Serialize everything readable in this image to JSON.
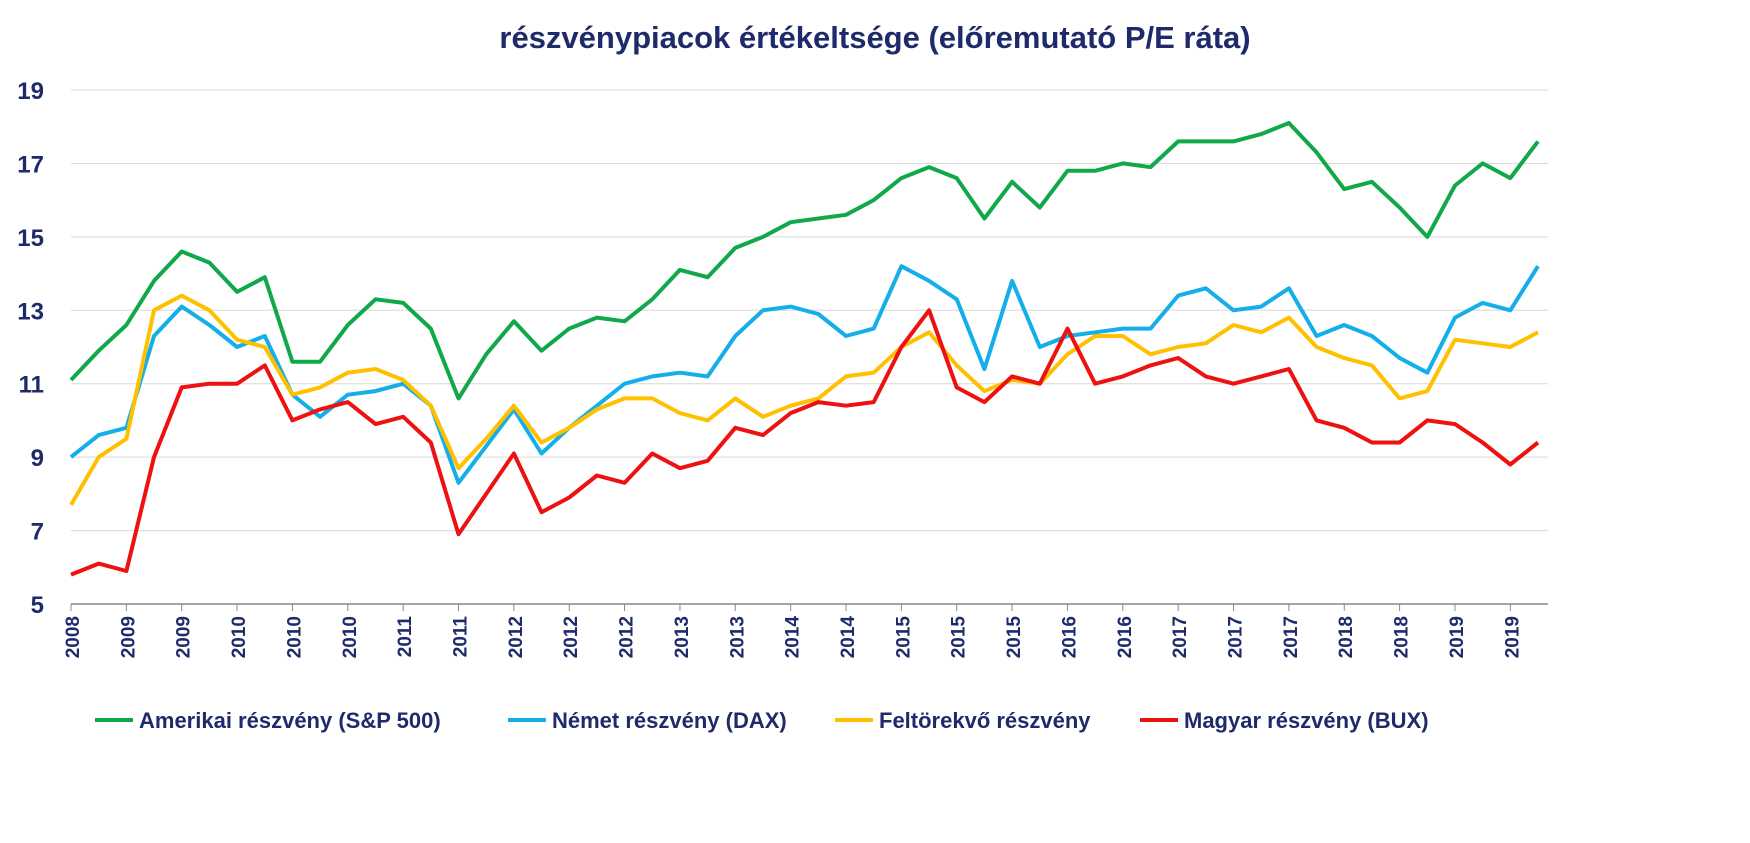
{
  "chart_data": {
    "type": "line",
    "title": "részvénypiacok értékeltsége (előremutató P/E ráta)",
    "categories": [
      "2008",
      null,
      "2009",
      null,
      "2009",
      null,
      "2010",
      null,
      "2010",
      null,
      "2010",
      null,
      "2011",
      null,
      "2011",
      null,
      "2012",
      null,
      "2012",
      null,
      "2012",
      null,
      "2013",
      null,
      "2013",
      null,
      "2014",
      null,
      "2014",
      null,
      "2015",
      null,
      "2015",
      null,
      "2015",
      null,
      "2016",
      null,
      "2016",
      null,
      "2017",
      null,
      "2017",
      null,
      "2017",
      null,
      "2018",
      null,
      "2018",
      null,
      "2019",
      null,
      "2019",
      null
    ],
    "series": [
      {
        "name": "Amerikai részvény (S&P 500)",
        "color": "#11a84a",
        "values": [
          11.1,
          11.9,
          12.6,
          13.8,
          14.6,
          14.3,
          13.5,
          13.9,
          11.6,
          11.6,
          12.6,
          13.3,
          13.2,
          12.5,
          10.6,
          11.8,
          12.7,
          11.9,
          12.5,
          12.8,
          12.7,
          13.3,
          14.1,
          13.9,
          14.7,
          15.0,
          15.4,
          15.5,
          15.6,
          16.0,
          16.6,
          16.9,
          16.6,
          15.5,
          16.5,
          15.8,
          16.8,
          16.8,
          17.0,
          16.9,
          17.6,
          17.6,
          17.6,
          17.8,
          18.1,
          17.3,
          16.3,
          16.5,
          15.8,
          15.0,
          16.4,
          17.0,
          16.6,
          17.6
        ]
      },
      {
        "name": "Német részvény (DAX)",
        "color": "#14aee8",
        "values": [
          9.0,
          9.6,
          9.8,
          12.3,
          13.1,
          12.6,
          12.0,
          12.3,
          10.7,
          10.1,
          10.7,
          10.8,
          11.0,
          10.4,
          8.3,
          9.3,
          10.3,
          9.1,
          9.8,
          10.4,
          11.0,
          11.2,
          11.3,
          11.2,
          12.3,
          13.0,
          13.1,
          12.9,
          12.3,
          12.5,
          14.2,
          13.8,
          13.3,
          11.4,
          13.8,
          12.0,
          12.3,
          12.4,
          12.5,
          12.5,
          13.4,
          13.6,
          13.0,
          13.1,
          13.6,
          12.3,
          12.6,
          12.3,
          11.7,
          11.3,
          12.8,
          13.2,
          13.0,
          14.2
        ]
      },
      {
        "name": "Feltörekvő részvény",
        "color": "#ffc000",
        "values": [
          7.7,
          9.0,
          9.5,
          13.0,
          13.4,
          13.0,
          12.2,
          12.0,
          10.7,
          10.9,
          11.3,
          11.4,
          11.1,
          10.4,
          8.7,
          9.5,
          10.4,
          9.4,
          9.8,
          10.3,
          10.6,
          10.6,
          10.2,
          10.0,
          10.6,
          10.1,
          10.4,
          10.6,
          11.2,
          11.3,
          12.0,
          12.4,
          11.5,
          10.8,
          11.1,
          11.0,
          11.8,
          12.3,
          12.3,
          11.8,
          12.0,
          12.1,
          12.6,
          12.4,
          12.8,
          12.0,
          11.7,
          11.5,
          10.6,
          10.8,
          12.2,
          12.1,
          12.0,
          12.4
        ]
      },
      {
        "name": "Magyar részvény (BUX)",
        "color": "#ee1111",
        "values": [
          5.8,
          6.1,
          5.9,
          9.0,
          10.9,
          11.0,
          11.0,
          11.5,
          10.0,
          10.3,
          10.5,
          9.9,
          10.1,
          9.4,
          6.9,
          8.0,
          9.1,
          7.5,
          7.9,
          8.5,
          8.3,
          9.1,
          8.7,
          8.9,
          9.8,
          9.6,
          10.2,
          10.5,
          10.4,
          10.5,
          12.0,
          13.0,
          10.9,
          10.5,
          11.2,
          11.0,
          12.5,
          11.0,
          11.2,
          11.5,
          11.7,
          11.2,
          11.0,
          11.2,
          11.4,
          10.0,
          9.8,
          9.4,
          9.4,
          10.0,
          9.9,
          9.4,
          8.8,
          9.4
        ]
      }
    ],
    "ylim": [
      5,
      19
    ],
    "yticks": [
      5,
      7,
      9,
      11,
      13,
      15,
      17,
      19
    ],
    "grid": true,
    "legend": "bottom"
  }
}
